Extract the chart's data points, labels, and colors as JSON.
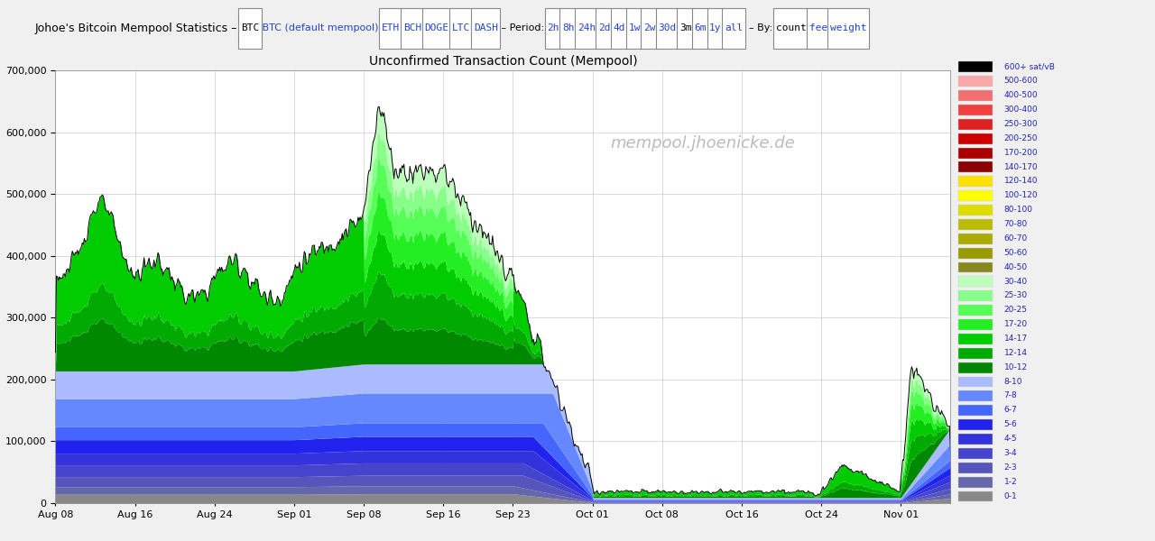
{
  "title": "Unconfirmed Transaction Count (Mempool)",
  "watermark": "mempool.jhoenicke.de",
  "ylim": [
    0,
    700000
  ],
  "yticks": [
    0,
    100000,
    200000,
    300000,
    400000,
    500000,
    600000,
    700000
  ],
  "header_bg": "#e0e0e0",
  "xtick_labels": [
    "Aug 08",
    "Aug 16",
    "Aug 24",
    "Sep 01",
    "Sep 08",
    "Sep 16",
    "Sep 23",
    "Oct 01",
    "Oct 08",
    "Oct 16",
    "Oct 24",
    "Nov 01"
  ],
  "xtick_days": [
    0,
    8,
    16,
    24,
    31,
    39,
    46,
    54,
    61,
    69,
    77,
    85
  ],
  "fee_bands": [
    {
      "label": "0-1",
      "color": "#888888"
    },
    {
      "label": "1-2",
      "color": "#6666aa"
    },
    {
      "label": "2-3",
      "color": "#5555bb"
    },
    {
      "label": "3-4",
      "color": "#4444cc"
    },
    {
      "label": "4-5",
      "color": "#3333dd"
    },
    {
      "label": "5-6",
      "color": "#2222ee"
    },
    {
      "label": "6-7",
      "color": "#4466ff"
    },
    {
      "label": "7-8",
      "color": "#6688ff"
    },
    {
      "label": "8-10",
      "color": "#aabbff"
    },
    {
      "label": "10-12",
      "color": "#008800"
    },
    {
      "label": "12-14",
      "color": "#00aa00"
    },
    {
      "label": "14-17",
      "color": "#00cc00"
    },
    {
      "label": "17-20",
      "color": "#22ee22"
    },
    {
      "label": "20-25",
      "color": "#55ff55"
    },
    {
      "label": "25-30",
      "color": "#88ff88"
    },
    {
      "label": "30-40",
      "color": "#bbffbb"
    },
    {
      "label": "40-50",
      "color": "#888820"
    },
    {
      "label": "50-60",
      "color": "#999900"
    },
    {
      "label": "60-70",
      "color": "#aaaa00"
    },
    {
      "label": "70-80",
      "color": "#bbbb00"
    },
    {
      "label": "80-100",
      "color": "#dddd00"
    },
    {
      "label": "100-120",
      "color": "#ffff00"
    },
    {
      "label": "120-140",
      "color": "#ffe000"
    },
    {
      "label": "140-170",
      "color": "#8b0000"
    },
    {
      "label": "170-200",
      "color": "#aa0000"
    },
    {
      "label": "200-250",
      "color": "#cc0000"
    },
    {
      "label": "250-300",
      "color": "#dd2020"
    },
    {
      "label": "300-400",
      "color": "#ee4040"
    },
    {
      "label": "400-500",
      "color": "#f07070"
    },
    {
      "label": "500-600",
      "color": "#f8a8a8"
    },
    {
      "label": "600+",
      "color": "#000000"
    }
  ],
  "n_points": 900,
  "total_days": 90
}
